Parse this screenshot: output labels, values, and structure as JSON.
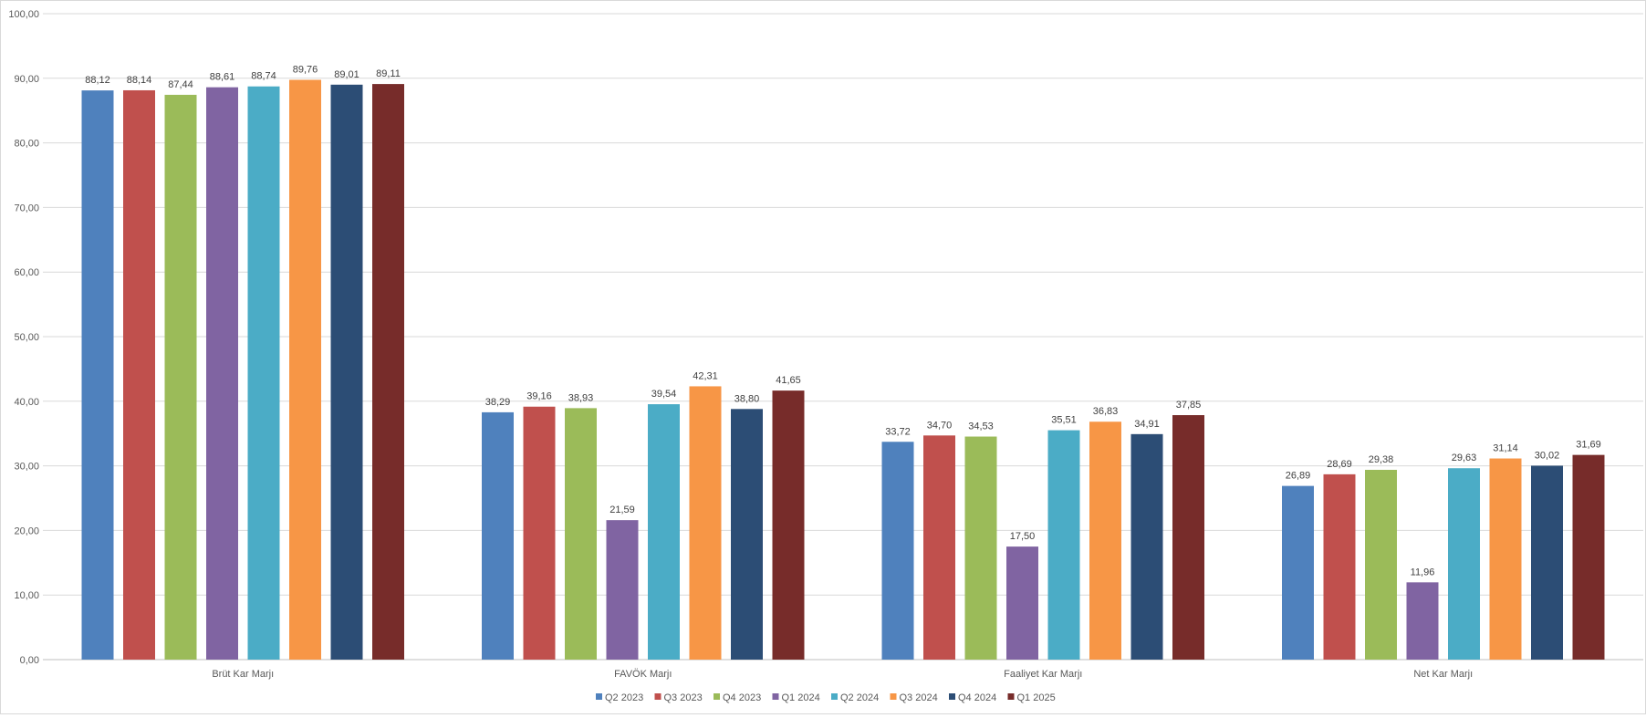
{
  "chart_data": {
    "type": "bar",
    "title": "",
    "xlabel": "",
    "ylabel": "",
    "ylim": [
      0,
      100
    ],
    "ytick_step": 10,
    "ytick_labels": [
      "0,00",
      "10,00",
      "20,00",
      "30,00",
      "40,00",
      "50,00",
      "60,00",
      "70,00",
      "80,00",
      "90,00",
      "100,00"
    ],
    "grid": true,
    "legend_position": "bottom",
    "categories": [
      "Brüt Kar Marjı",
      "FAVÖK Marjı",
      "Faaliyet Kar Marjı",
      "Net Kar Marjı"
    ],
    "series": [
      {
        "name": "Q2 2023",
        "color": "#4F81BD",
        "values": [
          88.12,
          38.29,
          33.72,
          26.89
        ],
        "labels": [
          "88,12",
          "38,29",
          "33,72",
          "26,89"
        ]
      },
      {
        "name": "Q3 2023",
        "color": "#C0504D",
        "values": [
          88.14,
          39.16,
          34.7,
          28.69
        ],
        "labels": [
          "88,14",
          "39,16",
          "34,70",
          "28,69"
        ]
      },
      {
        "name": "Q4 2023",
        "color": "#9BBB59",
        "values": [
          87.44,
          38.93,
          34.53,
          29.38
        ],
        "labels": [
          "87,44",
          "38,93",
          "34,53",
          "29,38"
        ]
      },
      {
        "name": "Q1 2024",
        "color": "#8064A2",
        "values": [
          88.61,
          21.59,
          17.5,
          11.96
        ],
        "labels": [
          "88,61",
          "21,59",
          "17,50",
          "11,96"
        ]
      },
      {
        "name": "Q2 2024",
        "color": "#4BACC6",
        "values": [
          88.74,
          39.54,
          35.51,
          29.63
        ],
        "labels": [
          "88,74",
          "39,54",
          "35,51",
          "29,63"
        ]
      },
      {
        "name": "Q3 2024",
        "color": "#F79646",
        "values": [
          89.76,
          42.31,
          36.83,
          31.14
        ],
        "labels": [
          "89,76",
          "42,31",
          "36,83",
          "31,14"
        ]
      },
      {
        "name": "Q4 2024",
        "color": "#2C4D75",
        "values": [
          89.01,
          38.8,
          34.91,
          30.02
        ],
        "labels": [
          "89,01",
          "38,80",
          "34,91",
          "30,02"
        ]
      },
      {
        "name": "Q1 2025",
        "color": "#772C2A",
        "values": [
          89.11,
          41.65,
          37.85,
          31.69
        ],
        "labels": [
          "89,11",
          "41,65",
          "37,85",
          "31,69"
        ]
      }
    ]
  }
}
